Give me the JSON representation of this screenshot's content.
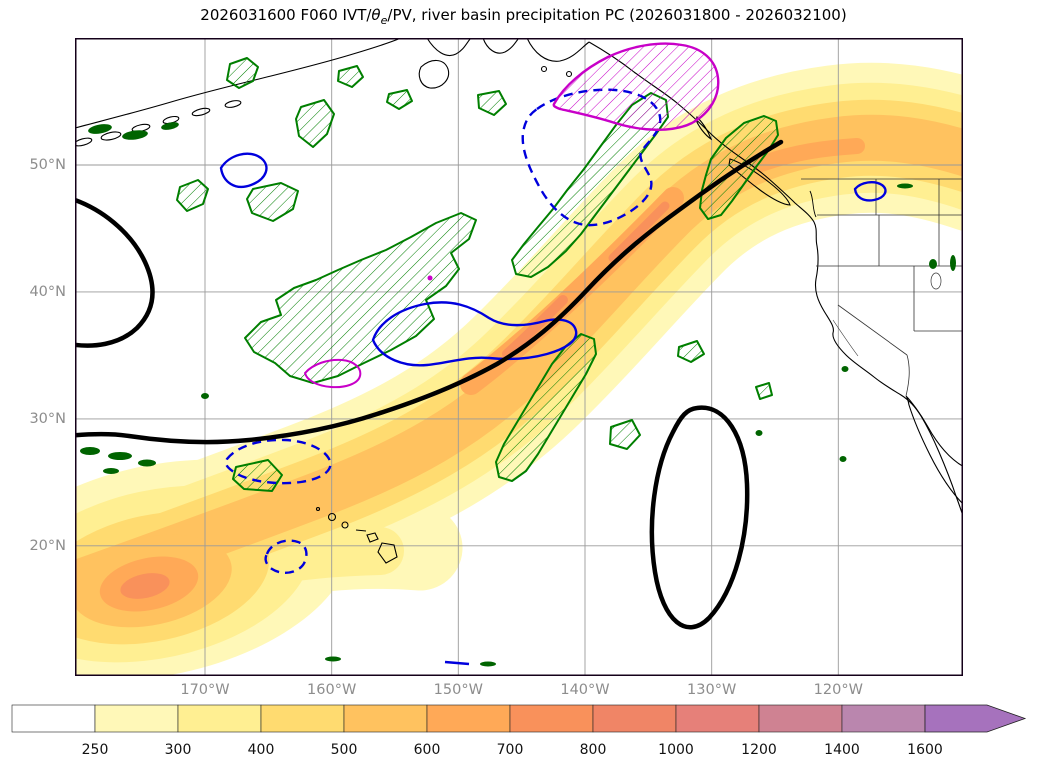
{
  "title": {
    "prefix": "2026031600 F060 IVT/",
    "theta": "θ",
    "sub": "e",
    "suffix": "/PV, river basin precipitation PC (2026031800 - 2026032100)"
  },
  "chart_data": {
    "type": "heatmap",
    "subtype": "filled-contour-geographic-map",
    "title": "2026031600 F060 IVT/θe/PV, river basin precipitation PC (2026031800 - 2026032100)",
    "init_time": "2026031600",
    "forecast_hour": "F060",
    "precip_accumulation_window": "2026031800 - 2026032100",
    "region": "Northeast Pacific and western North America with Alaska, Hawaii, Baja California",
    "x_axis": {
      "label": "longitude",
      "ticks": [
        "170°W",
        "160°W",
        "150°W",
        "140°W",
        "130°W",
        "120°W"
      ]
    },
    "y_axis": {
      "label": "latitude",
      "ticks": [
        "50°N",
        "40°N",
        "30°N",
        "20°N"
      ]
    },
    "grid": true,
    "colorbar": {
      "quantity": "IVT",
      "orientation": "horizontal",
      "extend": "max",
      "ticks": [
        "250",
        "300",
        "400",
        "500",
        "600",
        "700",
        "800",
        "1000",
        "1200",
        "1400",
        "1600"
      ],
      "colors": [
        "#ffffff",
        "#fff8b8",
        "#ffef92",
        "#ffdb70",
        "#ffc25f",
        "#ffa957",
        "#f9915b",
        "#f08566",
        "#e68079",
        "#cf8292",
        "#ba86ae"
      ],
      "arrow_color": "#a672bd"
    },
    "layers": [
      {
        "name": "IVT filled contours",
        "type": "filled",
        "min_level": 250,
        "max_shown_on_map": 800
      },
      {
        "name": "theta-e contour",
        "type": "contour",
        "color": "#000000",
        "style": "thick solid"
      },
      {
        "name": "PV contour (solid)",
        "type": "contour",
        "color": "#0000dd",
        "style": "solid"
      },
      {
        "name": "PV contour (dashed)",
        "type": "contour",
        "color": "#0000dd",
        "style": "dashed"
      },
      {
        "name": "river basin precipitation PC (green)",
        "type": "contour",
        "color": "#007f00",
        "style": "solid with diagonal hatching"
      },
      {
        "name": "river basin precipitation PC (magenta)",
        "type": "contour",
        "color": "#c800c8",
        "style": "solid with diagonal hatching"
      }
    ],
    "features": {
      "atmospheric_river_band": "IVT band 250-800 arcing from ~18N 178W through ~35N 150W to the Pacific Northwest coast near 48N",
      "ivt_cores_approx": [
        {
          "location": "18N 177W",
          "level": 700
        },
        {
          "location": "36N 148W",
          "level": 700
        },
        {
          "location": "42N 143W",
          "level": 700
        },
        {
          "location": "49N 128W",
          "level": 600
        }
      ],
      "black_closed_contour": "oval near 25N 131W and arc near 43N at western boundary",
      "magenta_hatched_region": "near 57N 138W over the Gulf of Alaska / SE Alaska"
    }
  },
  "axes": {
    "lat_ticks": [
      "50°N",
      "40°N",
      "30°N",
      "20°N"
    ],
    "lon_ticks": [
      "170°W",
      "160°W",
      "150°W",
      "140°W",
      "130°W",
      "120°W"
    ]
  }
}
